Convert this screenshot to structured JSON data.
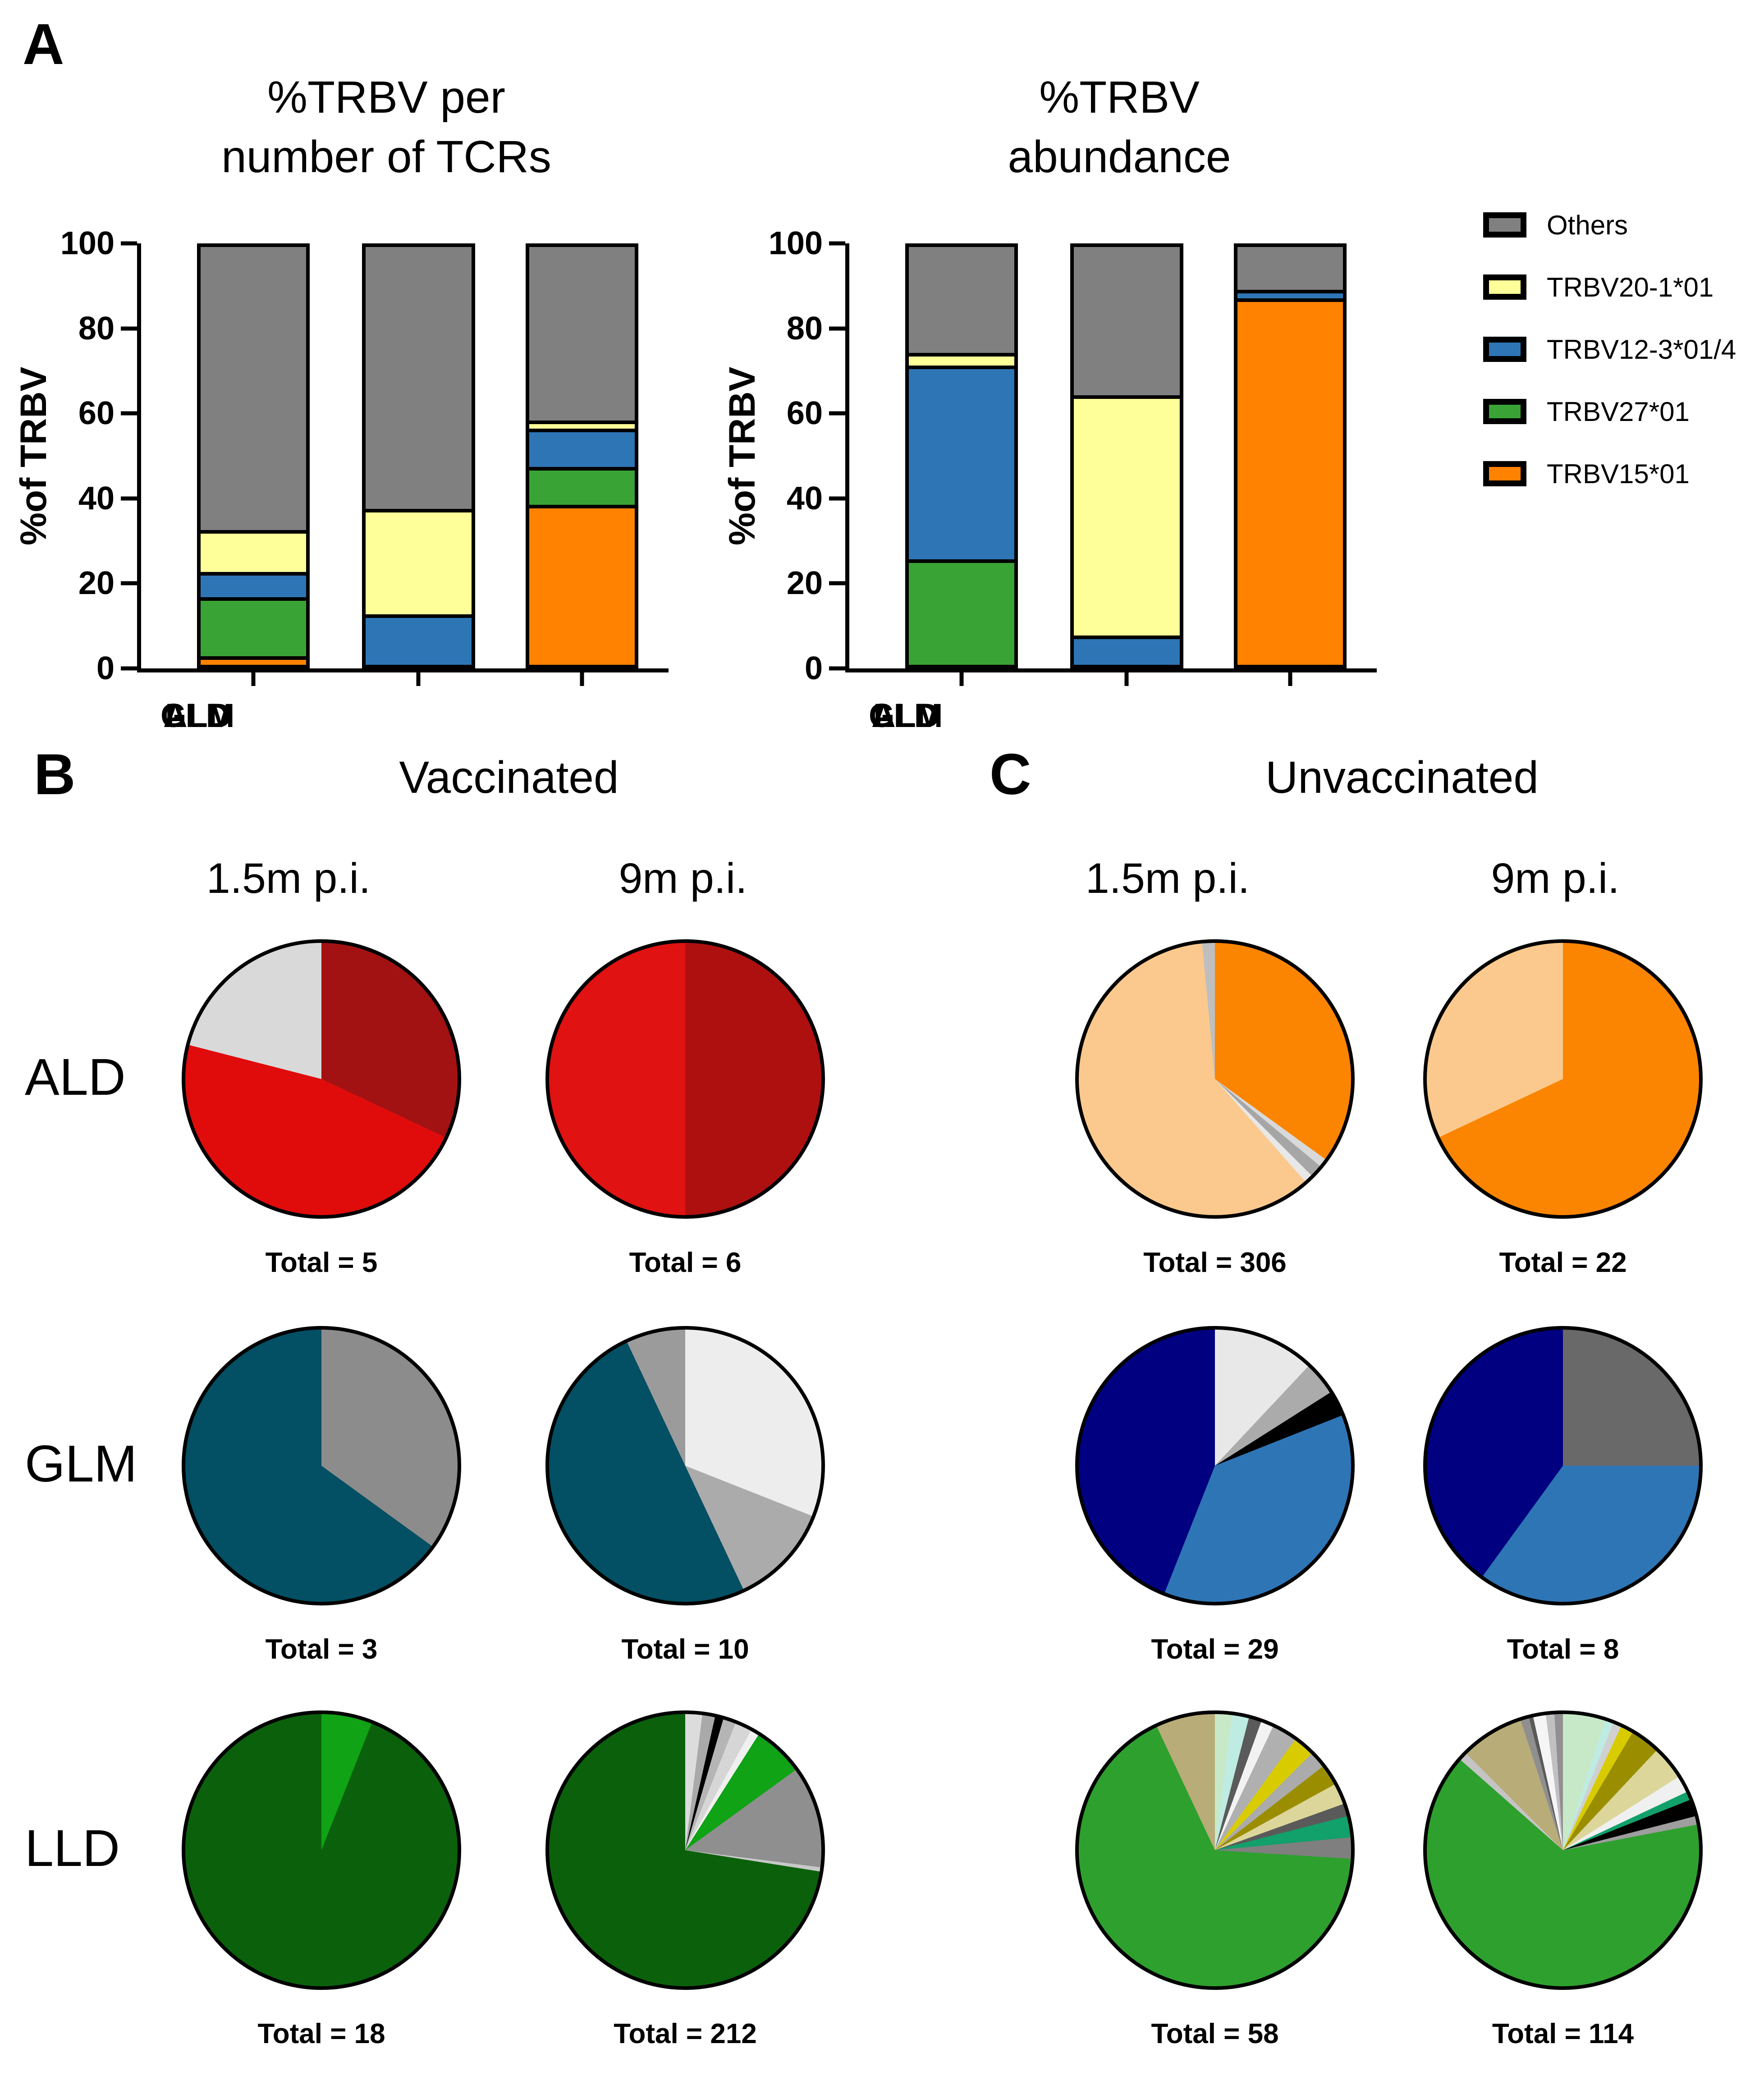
{
  "panel_a": {
    "label": "A",
    "legend": {
      "entries": [
        {
          "label": "Others",
          "color": "#808080"
        },
        {
          "label": "TRBV20-1*01",
          "color": "#FFFF99"
        },
        {
          "label": "TRBV12-3*01/4",
          "color": "#2E75B6"
        },
        {
          "label": "TRBV27*01",
          "color": "#3AA335"
        },
        {
          "label": "TRBV15*01",
          "color": "#FF8200"
        }
      ]
    }
  },
  "panel_b": {
    "label": "B",
    "title": "Vaccinated",
    "col1": "1.5m p.i.",
    "col2": "9m p.i."
  },
  "panel_c": {
    "label": "C",
    "title": "Unvaccinated",
    "col1": "1.5m p.i.",
    "col2": "9m p.i."
  },
  "row_labels": [
    "ALD",
    "GLM",
    "LLD"
  ],
  "chart_data": [
    {
      "type": "bar",
      "title_line1": "%TRBV per",
      "title_line2": "number of TCRs",
      "ylabel": "%of TRBV",
      "ylim": [
        0,
        100
      ],
      "yticks": [
        0,
        20,
        40,
        60,
        80,
        100
      ],
      "categories": [
        "ALD",
        "GLM",
        "LLD"
      ],
      "legend_position": "right",
      "grid": false,
      "series": [
        {
          "name": "TRBV15*01",
          "color": "#FF8200",
          "values": [
            2,
            0,
            38
          ]
        },
        {
          "name": "TRBV27*01",
          "color": "#3AA335",
          "values": [
            14,
            0,
            9
          ]
        },
        {
          "name": "TRBV12-3*01/4",
          "color": "#2E75B6",
          "values": [
            6,
            12,
            9
          ]
        },
        {
          "name": "TRBV20-1*01",
          "color": "#FFFF99",
          "values": [
            10,
            25,
            2
          ]
        },
        {
          "name": "Others",
          "color": "#808080",
          "values": [
            68,
            63,
            42
          ]
        }
      ]
    },
    {
      "type": "bar",
      "title_line1": "%TRBV",
      "title_line2": "abundance",
      "ylabel": "%of TRBV",
      "ylim": [
        0,
        100
      ],
      "yticks": [
        0,
        20,
        40,
        60,
        80,
        100
      ],
      "categories": [
        "ALD",
        "GLM",
        "LLD"
      ],
      "legend_position": "right",
      "grid": false,
      "series": [
        {
          "name": "TRBV15*01",
          "color": "#FF8200",
          "values": [
            0,
            0,
            87
          ]
        },
        {
          "name": "TRBV27*01",
          "color": "#3AA335",
          "values": [
            25,
            0,
            0
          ]
        },
        {
          "name": "TRBV12-3*01/4",
          "color": "#2E75B6",
          "values": [
            46,
            7,
            2
          ]
        },
        {
          "name": "TRBV20-1*01",
          "color": "#FFFF99",
          "values": [
            3,
            57,
            0
          ]
        },
        {
          "name": "Others",
          "color": "#808080",
          "values": [
            26,
            36,
            11
          ]
        }
      ]
    },
    {
      "type": "pie",
      "panel": "Vaccinated",
      "row": "ALD",
      "timepoint": "1.5m p.i.",
      "total": 5,
      "total_label": "Total = 5",
      "slices": [
        {
          "color": "#A31212",
          "value": 32
        },
        {
          "color": "#E00C0C",
          "value": 47
        },
        {
          "color": "#D9D9D9",
          "value": 21
        }
      ]
    },
    {
      "type": "pie",
      "panel": "Vaccinated",
      "row": "ALD",
      "timepoint": "9m p.i.",
      "total": 6,
      "total_label": "Total = 6",
      "slices": [
        {
          "color": "#AE1010",
          "value": 50
        },
        {
          "color": "#E01212",
          "value": 50
        }
      ]
    },
    {
      "type": "pie",
      "panel": "Unvaccinated",
      "row": "ALD",
      "timepoint": "1.5m p.i.",
      "total": 306,
      "total_label": "Total = 306",
      "slices": [
        {
          "color": "#FB8500",
          "value": 35
        },
        {
          "color": "#D9D9D9",
          "value": 1
        },
        {
          "color": "#A6A6A6",
          "value": 1.5
        },
        {
          "color": "#E8E8E8",
          "value": 1
        },
        {
          "color": "#FBC98D",
          "value": 60
        },
        {
          "color": "#BFBFBF",
          "value": 1.5
        }
      ]
    },
    {
      "type": "pie",
      "panel": "Unvaccinated",
      "row": "ALD",
      "timepoint": "9m p.i.",
      "total": 22,
      "total_label": "Total = 22",
      "slices": [
        {
          "color": "#FB8500",
          "value": 68
        },
        {
          "color": "#FBC98D",
          "value": 32
        }
      ]
    },
    {
      "type": "pie",
      "panel": "Vaccinated",
      "row": "GLM",
      "timepoint": "1.5m p.i.",
      "total": 3,
      "total_label": "Total = 3",
      "slices": [
        {
          "color": "#8C8C8C",
          "value": 35
        },
        {
          "color": "#034F63",
          "value": 65
        }
      ]
    },
    {
      "type": "pie",
      "panel": "Vaccinated",
      "row": "GLM",
      "timepoint": "9m p.i.",
      "total": 10,
      "total_label": "Total = 10",
      "slices": [
        {
          "color": "#EDEDED",
          "value": 31
        },
        {
          "color": "#ABABAB",
          "value": 12
        },
        {
          "color": "#034F63",
          "value": 50
        },
        {
          "color": "#9B9B9B",
          "value": 7
        }
      ]
    },
    {
      "type": "pie",
      "panel": "Unvaccinated",
      "row": "GLM",
      "timepoint": "1.5m p.i.",
      "total": 29,
      "total_label": "Total = 29",
      "slices": [
        {
          "color": "#E8E8E8",
          "value": 12
        },
        {
          "color": "#ABABAB",
          "value": 4
        },
        {
          "color": "#000000",
          "value": 3
        },
        {
          "color": "#2E75B6",
          "value": 37
        },
        {
          "color": "#000080",
          "value": 44
        }
      ]
    },
    {
      "type": "pie",
      "panel": "Unvaccinated",
      "row": "GLM",
      "timepoint": "9m p.i.",
      "total": 8,
      "total_label": "Total = 8",
      "slices": [
        {
          "color": "#696969",
          "value": 25
        },
        {
          "color": "#2E75B6",
          "value": 35
        },
        {
          "color": "#000080",
          "value": 40
        }
      ]
    },
    {
      "type": "pie",
      "panel": "Vaccinated",
      "row": "LLD",
      "timepoint": "1.5m p.i.",
      "total": 18,
      "total_label": "Total = 18",
      "slices": [
        {
          "color": "#0FA315",
          "value": 6
        },
        {
          "color": "#0B610B",
          "value": 94
        }
      ]
    },
    {
      "type": "pie",
      "panel": "Vaccinated",
      "row": "LLD",
      "timepoint": "9m p.i.",
      "total": 212,
      "total_label": "Total = 212",
      "slices": [
        {
          "color": "#DCDCDC",
          "value": 2
        },
        {
          "color": "#A9A9A9",
          "value": 1.5
        },
        {
          "color": "#000000",
          "value": 1
        },
        {
          "color": "#B5B5B5",
          "value": 1.5
        },
        {
          "color": "#D6D6D6",
          "value": 2
        },
        {
          "color": "#F0F0F0",
          "value": 1
        },
        {
          "color": "#0FA315",
          "value": 6
        },
        {
          "color": "#8F8F8F",
          "value": 12
        },
        {
          "color": "#C8C8C8",
          "value": 0.5
        },
        {
          "color": "#0B610B",
          "value": 72.5
        }
      ]
    },
    {
      "type": "pie",
      "panel": "Unvaccinated",
      "row": "LLD",
      "timepoint": "1.5m p.i.",
      "total": 58,
      "total_label": "Total = 58",
      "slices": [
        {
          "color": "#C8E9C8",
          "value": 2
        },
        {
          "color": "#BEEBE2",
          "value": 2
        },
        {
          "color": "#5A5A5A",
          "value": 1.5
        },
        {
          "color": "#F2F2F2",
          "value": 1.5
        },
        {
          "color": "#B0B0B0",
          "value": 3
        },
        {
          "color": "#D8CC00",
          "value": 2.5
        },
        {
          "color": "#ABABAB",
          "value": 2
        },
        {
          "color": "#9A8E00",
          "value": 2.5
        },
        {
          "color": "#DCD69A",
          "value": 2.5
        },
        {
          "color": "#5A5A5A",
          "value": 1.5
        },
        {
          "color": "#12A06B",
          "value": 2.5
        },
        {
          "color": "#7F7F7F",
          "value": 2.5
        },
        {
          "color": "#2EA02E",
          "value": 67
        },
        {
          "color": "#B8AC78",
          "value": 7
        }
      ]
    },
    {
      "type": "pie",
      "panel": "Unvaccinated",
      "row": "LLD",
      "timepoint": "9m p.i.",
      "total": 114,
      "total_label": "Total = 114",
      "slices": [
        {
          "color": "#C8E9C8",
          "value": 5
        },
        {
          "color": "#BEEBE2",
          "value": 1
        },
        {
          "color": "#D0D0D0",
          "value": 1
        },
        {
          "color": "#D8CC00",
          "value": 1.5
        },
        {
          "color": "#9A8E00",
          "value": 3.5
        },
        {
          "color": "#DCD69A",
          "value": 4
        },
        {
          "color": "#F0F0F0",
          "value": 2
        },
        {
          "color": "#12A06B",
          "value": 1
        },
        {
          "color": "#000000",
          "value": 2
        },
        {
          "color": "#9E9E9E",
          "value": 1
        },
        {
          "color": "#2EA02E",
          "value": 64.5
        },
        {
          "color": "#C4C4C4",
          "value": 1
        },
        {
          "color": "#B8AC78",
          "value": 7.5
        },
        {
          "color": "#8F8F8F",
          "value": 1
        },
        {
          "color": "#5A5A5A",
          "value": 0.5
        },
        {
          "color": "#F5F5F5",
          "value": 1.5
        },
        {
          "color": "#C0C0C0",
          "value": 1
        },
        {
          "color": "#909090",
          "value": 1
        }
      ]
    }
  ]
}
